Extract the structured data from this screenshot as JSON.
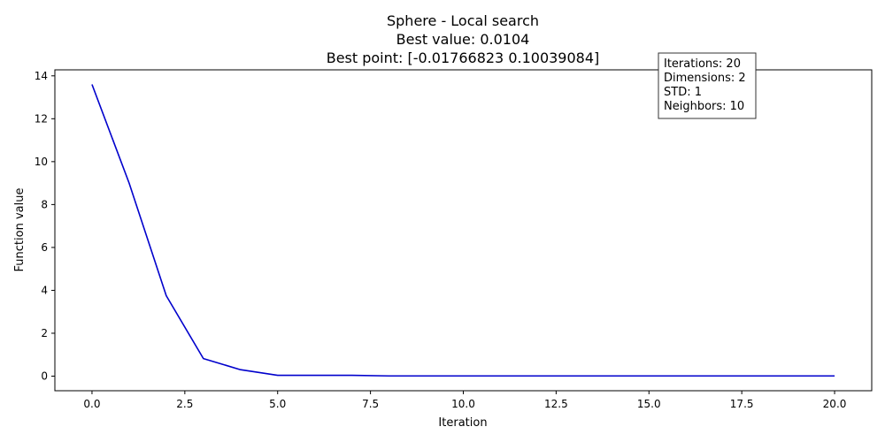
{
  "chart_data": {
    "type": "line",
    "title_lines": [
      "Sphere - Local search",
      "Best value: 0.0104",
      "Best point: [-0.01766823  0.10039084]"
    ],
    "xlabel": "Iteration",
    "ylabel": "Function value",
    "xlim": [
      -1.0,
      21.0
    ],
    "ylim": [
      -0.68,
      14.28
    ],
    "x_ticks": [
      0.0,
      2.5,
      5.0,
      7.5,
      10.0,
      12.5,
      15.0,
      17.5,
      20.0
    ],
    "x_tick_labels": [
      "0.0",
      "2.5",
      "5.0",
      "7.5",
      "10.0",
      "12.5",
      "15.0",
      "17.5",
      "20.0"
    ],
    "y_ticks": [
      0,
      2,
      4,
      6,
      8,
      10,
      12,
      14
    ],
    "y_tick_labels": [
      "0",
      "2",
      "4",
      "6",
      "8",
      "10",
      "12",
      "14"
    ],
    "grid": false,
    "legend": "none",
    "series": [
      {
        "color": "#0000cc",
        "x": [
          0,
          1,
          2,
          3,
          4,
          5,
          6,
          7,
          8,
          9,
          10,
          11,
          12,
          13,
          14,
          15,
          16,
          17,
          18,
          19,
          20
        ],
        "values": [
          13.6,
          9.0,
          3.75,
          0.82,
          0.3,
          0.04,
          0.04,
          0.04,
          0.0104,
          0.0104,
          0.0104,
          0.0104,
          0.0104,
          0.0104,
          0.0104,
          0.0104,
          0.0104,
          0.0104,
          0.0104,
          0.0104,
          0.0104
        ]
      }
    ],
    "annotation": {
      "placement": "top-right",
      "lines": [
        "Iterations: 20",
        "Dimensions: 2",
        "STD: 1",
        "Neighbors: 10"
      ]
    }
  }
}
